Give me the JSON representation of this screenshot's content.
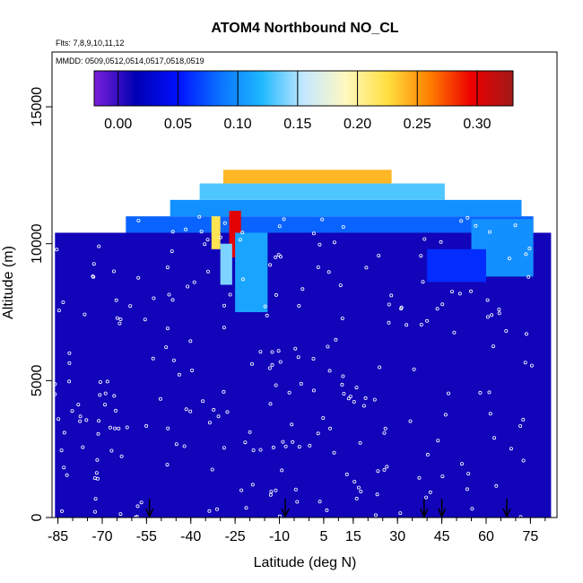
{
  "chart_data": {
    "type": "heatmap",
    "title": "ATOM4 Northbound NO_CL",
    "subtitle_flights": "Flts: 7,8,9,10,11,12",
    "subtitle_dates": "MMDD: 0509,0512,0514,0517,0518,0519",
    "xlabel": "Latitude (deg N)",
    "ylabel": "Altitude (m)",
    "xlim": [
      -87,
      84
    ],
    "ylim": [
      0,
      17000
    ],
    "x_ticks": [
      -85,
      -70,
      -55,
      -40,
      -25,
      -10,
      5,
      15,
      30,
      45,
      60,
      75
    ],
    "y_ticks": [
      0,
      5000,
      10000,
      15000
    ],
    "colorbar": {
      "range": [
        -0.02,
        0.33
      ],
      "ticks": [
        0.0,
        0.05,
        0.1,
        0.15,
        0.2,
        0.25,
        0.3
      ],
      "tick_labels": [
        "0.00",
        "0.05",
        "0.10",
        "0.15",
        "0.20",
        "0.25",
        "0.30"
      ],
      "colors": [
        "#7b1fd8",
        "#0000b4",
        "#0010ff",
        "#0a72ff",
        "#1fb8ff",
        "#c4e8ff",
        "#fff8c0",
        "#ffe040",
        "#ff8000",
        "#ee0000",
        "#a01818"
      ]
    },
    "flight_profile_markers_lat": [
      -54,
      -8,
      39,
      45,
      67
    ],
    "background_value": 0.01,
    "data_regions": [
      {
        "lat": [
          -86,
          82
        ],
        "alt": [
          0,
          10400
        ],
        "value": 0.01
      },
      {
        "lat": [
          -62,
          76
        ],
        "alt": [
          10400,
          11000
        ],
        "value": 0.08
      },
      {
        "lat": [
          -47,
          72
        ],
        "alt": [
          11000,
          11600
        ],
        "value": 0.1
      },
      {
        "lat": [
          -37,
          46
        ],
        "alt": [
          11600,
          12200
        ],
        "value": 0.13
      },
      {
        "lat": [
          -29,
          28
        ],
        "alt": [
          12200,
          12700
        ],
        "value": 0.24
      },
      {
        "lat": [
          -27,
          -23
        ],
        "alt": [
          9500,
          11200
        ],
        "value": 0.3
      },
      {
        "lat": [
          -33,
          -30
        ],
        "alt": [
          9800,
          11000
        ],
        "value": 0.22
      },
      {
        "lat": [
          -25,
          -14
        ],
        "alt": [
          7500,
          10400
        ],
        "value": 0.11
      },
      {
        "lat": [
          -30,
          -26
        ],
        "alt": [
          8500,
          10000
        ],
        "value": 0.14
      },
      {
        "lat": [
          55,
          76
        ],
        "alt": [
          8800,
          10900
        ],
        "value": 0.1
      },
      {
        "lat": [
          40,
          60
        ],
        "alt": [
          8600,
          9800
        ],
        "value": 0.06
      }
    ]
  }
}
